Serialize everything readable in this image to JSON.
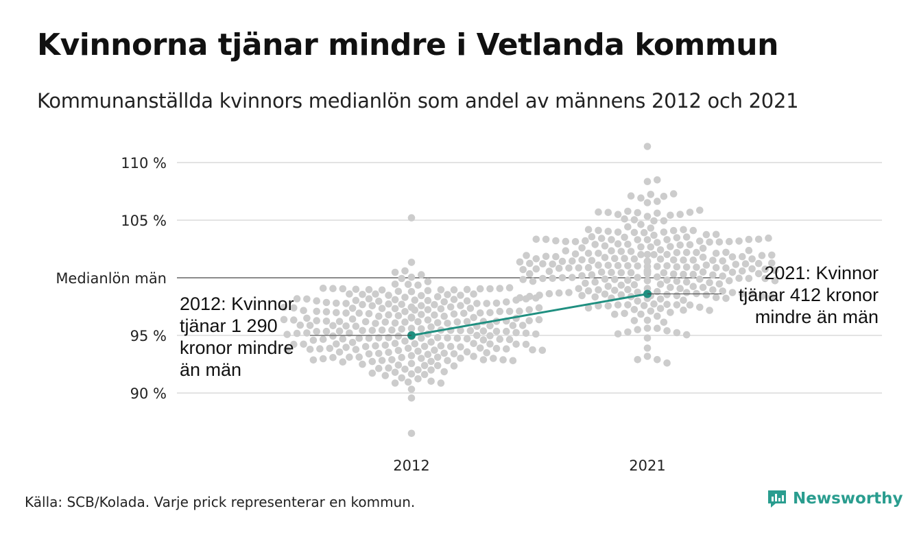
{
  "title": "Kvinnorna tjänar mindre i Vetlanda kommun",
  "subtitle": "Kommunanställda kvinnors medianlön som andel av männens 2012 och 2021",
  "source": "Källa: SCB/Kolada. Varje prick representerar en kommun.",
  "brand": "Newsworthy",
  "colors": {
    "dots": "#cccccc",
    "highlight": "#1f8f80",
    "grid": "#e3e3e3",
    "reference": "#444444",
    "text": "#222222"
  },
  "chart_data": {
    "type": "scatter",
    "title": "Kvinnorna tjänar mindre i Vetlanda kommun",
    "subtitle": "Kommunanställda kvinnors medianlön som andel av männens 2012 och 2021",
    "categories": [
      "2012",
      "2021"
    ],
    "ylim": [
      86,
      112
    ],
    "y_ticks": [
      {
        "value": 110,
        "label": "110 %"
      },
      {
        "value": 105,
        "label": "105 %"
      },
      {
        "value": 100,
        "label": "Medianlön män"
      },
      {
        "value": 95,
        "label": "95 %"
      },
      {
        "value": 90,
        "label": "90 %"
      }
    ],
    "grid": true,
    "highlight": {
      "name": "Vetlanda",
      "values": [
        95.0,
        98.6
      ],
      "labels": [
        [
          "2012: Kvinnor",
          "tjänar 1 290",
          "kronor mindre",
          "än män"
        ],
        [
          "2021: Kvinnor",
          "tjänar 412 kronor",
          "mindre än män"
        ]
      ]
    },
    "distribution": {
      "2012": {
        "n": 290,
        "median": 95.6,
        "sd": 2.3,
        "min": 86.5,
        "max": 105.2
      },
      "2021": {
        "n": 290,
        "median": 101.0,
        "sd": 2.7,
        "min": 92.6,
        "max": 111.4
      }
    }
  }
}
